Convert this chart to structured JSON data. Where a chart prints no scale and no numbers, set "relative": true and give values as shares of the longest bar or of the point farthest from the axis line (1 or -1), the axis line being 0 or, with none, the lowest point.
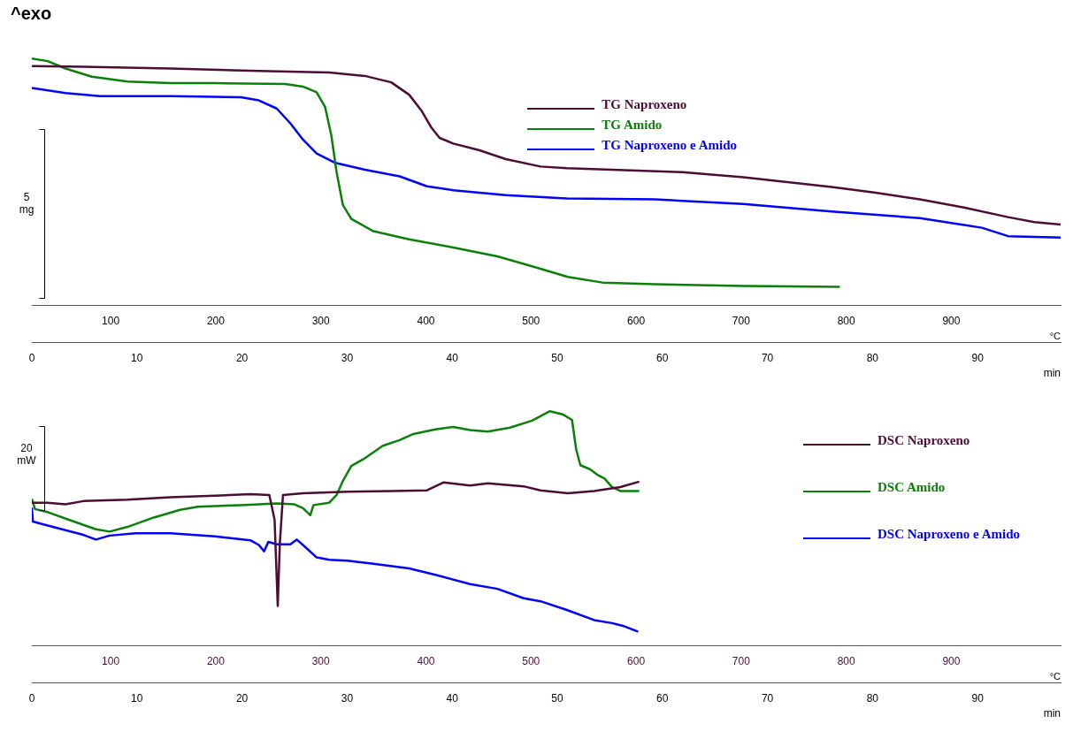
{
  "chart_data": [
    {
      "type": "line",
      "relative": true,
      "annotations": [
        "^exo",
        "5 mg"
      ],
      "xlabel": "min",
      "x2label": "°C",
      "xlim": [
        0,
        97.9
      ],
      "xticks": [
        0,
        10,
        20,
        30,
        40,
        50,
        60,
        70,
        80,
        90
      ],
      "x2lim": [
        25,
        1004
      ],
      "x2ticks": [
        100,
        200,
        300,
        400,
        500,
        600,
        700,
        800,
        900
      ],
      "legend": "top right",
      "marker": "none",
      "series": [
        {
          "name": "TG Naproxeno",
          "color": "#4b0d33",
          "x": [
            0,
            4.9,
            13.2,
            21.6,
            28.3,
            31.7,
            34.2,
            35.9,
            37.1,
            38.0,
            38.8,
            40.1,
            42.6,
            45.1,
            48.4,
            50.9,
            55.2,
            61.9,
            67.7,
            71.9,
            76.1,
            80.3,
            84.5,
            88.7,
            92.9,
            95.4,
            97.9
          ],
          "values": [
            0.97,
            0.967,
            0.96,
            0.95,
            0.944,
            0.93,
            0.904,
            0.854,
            0.788,
            0.722,
            0.679,
            0.656,
            0.629,
            0.593,
            0.563,
            0.556,
            0.55,
            0.54,
            0.52,
            0.5,
            0.48,
            0.457,
            0.43,
            0.397,
            0.358,
            0.338,
            0.328
          ]
        },
        {
          "name": "TG Amido",
          "color": "#0a800a",
          "x": [
            0,
            1.5,
            3.2,
            5.7,
            9.1,
            13.2,
            17.4,
            24.1,
            25.8,
            27.1,
            27.9,
            28.5,
            29.0,
            29.6,
            30.4,
            32.5,
            35.9,
            40.1,
            44.3,
            47.6,
            51.0,
            54.3,
            59.3,
            67.7,
            76.9
          ],
          "values": [
            1.0,
            0.99,
            0.96,
            0.927,
            0.907,
            0.901,
            0.901,
            0.897,
            0.887,
            0.864,
            0.805,
            0.689,
            0.54,
            0.407,
            0.351,
            0.301,
            0.268,
            0.235,
            0.199,
            0.159,
            0.116,
            0.093,
            0.086,
            0.079,
            0.076
          ]
        },
        {
          "name": "TG Naproxeno e Amido",
          "color": "#0000ff",
          "x": [
            0,
            3.2,
            6.5,
            13.2,
            19.9,
            21.6,
            23.3,
            24.6,
            25.8,
            27.1,
            28.8,
            31.7,
            35.0,
            37.6,
            40.1,
            45.1,
            50.9,
            59.3,
            67.7,
            76.1,
            84.5,
            90.4,
            92.9,
            97.9
          ],
          "values": [
            0.881,
            0.861,
            0.848,
            0.848,
            0.844,
            0.831,
            0.798,
            0.738,
            0.672,
            0.616,
            0.579,
            0.55,
            0.523,
            0.483,
            0.467,
            0.447,
            0.434,
            0.43,
            0.411,
            0.381,
            0.354,
            0.315,
            0.281,
            0.275
          ]
        }
      ]
    },
    {
      "type": "line",
      "relative": true,
      "annotations": [
        "20 mW"
      ],
      "xlabel": "min",
      "x2label": "°C",
      "xlim": [
        0,
        97.9
      ],
      "xticks": [
        0,
        10,
        20,
        30,
        40,
        50,
        60,
        70,
        80,
        90
      ],
      "x2lim": [
        25,
        1004
      ],
      "x2ticks": [
        100,
        200,
        300,
        400,
        500,
        600,
        700,
        800,
        900
      ],
      "legend": "right",
      "marker": "none",
      "series": [
        {
          "name": "DSC Naproxeno",
          "color": "#4b0d33",
          "x": [
            0,
            1.5,
            3.2,
            4.9,
            9.1,
            13.2,
            17.4,
            20.8,
            22.6,
            23.1,
            23.4,
            23.6,
            23.9,
            25.8,
            30.0,
            34.2,
            37.6,
            39.2,
            41.7,
            43.4,
            46.8,
            48.4,
            51.0,
            53.5,
            56.0,
            57.8
          ],
          "values": [
            0.61,
            0.61,
            0.603,
            0.617,
            0.623,
            0.633,
            0.64,
            0.647,
            0.643,
            0.537,
            0.17,
            0.437,
            0.643,
            0.65,
            0.657,
            0.66,
            0.663,
            0.697,
            0.683,
            0.693,
            0.68,
            0.663,
            0.65,
            0.66,
            0.677,
            0.7
          ]
        },
        {
          "name": "DSC Amido",
          "color": "#0a800a",
          "x": [
            0,
            0.3,
            1.5,
            4.0,
            6.1,
            7.4,
            9.1,
            11.6,
            14.1,
            15.8,
            19.9,
            23.3,
            25.0,
            25.8,
            26.5,
            26.8,
            28.3,
            29.0,
            29.6,
            30.4,
            31.7,
            33.4,
            35.0,
            36.3,
            38.4,
            40.1,
            41.7,
            43.4,
            45.5,
            47.6,
            49.3,
            50.5,
            51.4,
            51.8,
            52.2,
            53.1,
            53.9,
            54.5,
            55.2,
            56.0,
            57.8
          ],
          "values": [
            0.627,
            0.583,
            0.57,
            0.53,
            0.497,
            0.487,
            0.507,
            0.547,
            0.58,
            0.593,
            0.6,
            0.607,
            0.603,
            0.587,
            0.557,
            0.6,
            0.61,
            0.643,
            0.703,
            0.767,
            0.8,
            0.853,
            0.877,
            0.903,
            0.923,
            0.933,
            0.92,
            0.913,
            0.93,
            0.96,
            1.0,
            0.987,
            0.963,
            0.837,
            0.77,
            0.753,
            0.727,
            0.713,
            0.677,
            0.66,
            0.66
          ]
        },
        {
          "name": "DSC Naproxeno e Amido",
          "color": "#0000ff",
          "x": [
            0,
            0.1,
            1.5,
            3.2,
            4.9,
            6.1,
            7.4,
            9.9,
            13.2,
            17.4,
            20.8,
            21.6,
            22.1,
            22.5,
            23.3,
            24.6,
            25.2,
            25.8,
            27.1,
            28.3,
            30.0,
            32.5,
            35.9,
            38.4,
            41.7,
            44.3,
            46.8,
            48.4,
            50.9,
            53.5,
            55.2,
            56.4,
            57.7
          ],
          "values": [
            0.59,
            0.53,
            0.513,
            0.493,
            0.473,
            0.453,
            0.47,
            0.48,
            0.48,
            0.467,
            0.45,
            0.43,
            0.403,
            0.443,
            0.433,
            0.433,
            0.453,
            0.43,
            0.377,
            0.367,
            0.363,
            0.35,
            0.33,
            0.303,
            0.263,
            0.243,
            0.203,
            0.19,
            0.153,
            0.11,
            0.097,
            0.083,
            0.06
          ]
        }
      ]
    }
  ]
}
